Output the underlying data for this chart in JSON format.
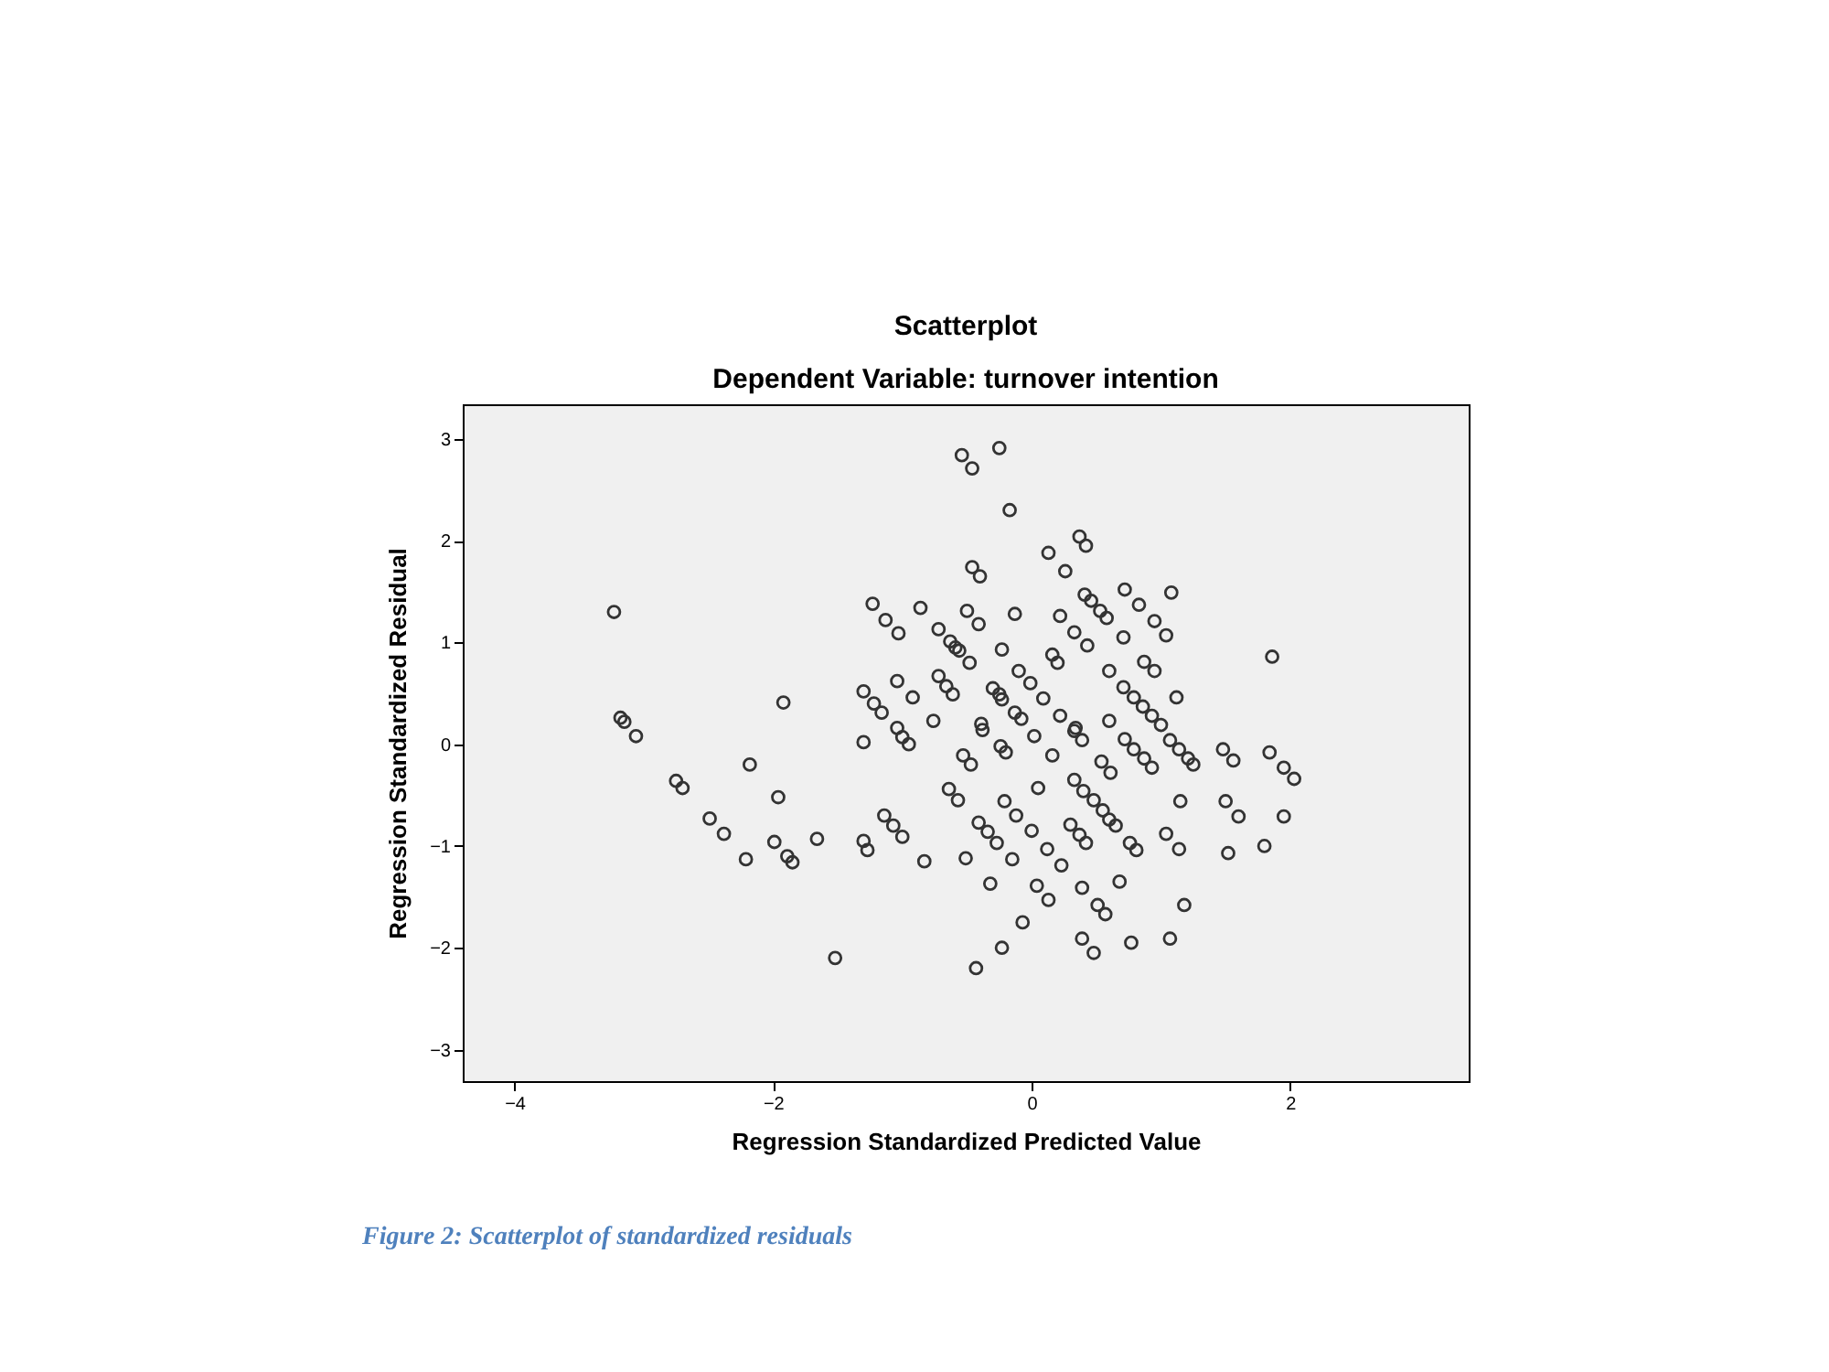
{
  "chart_data": {
    "type": "scatter",
    "title": "Scatterplot",
    "subtitle": "Dependent Variable: turnover intention",
    "xlabel": "Regression Standardized Predicted Value",
    "ylabel": "Regression Standardized Residual",
    "annotations": [
      "Figure 2: Scatterplot of standardized residuals"
    ],
    "x": [
      -3.23,
      -3.18,
      -3.15,
      -3.06,
      -1.92,
      -2.75,
      -2.7,
      -2.18,
      -1.96,
      -2.49,
      -2.38,
      -2.21,
      -1.99,
      -1.89,
      -1.85,
      -1.66,
      -1.52,
      -0.54,
      -0.46,
      -0.25,
      -0.17,
      -0.46,
      -0.4,
      -1.23,
      -1.13,
      -1.03,
      -0.86,
      -0.72,
      -0.63,
      -0.59,
      -0.56,
      -0.48,
      -0.5,
      -0.41,
      -0.13,
      -0.23,
      -1.3,
      -1.22,
      -1.16,
      -1.04,
      -0.92,
      -0.72,
      -0.66,
      -0.61,
      -0.3,
      -0.25,
      -0.23,
      -0.76,
      -1.04,
      -0.39,
      -0.1,
      -0.13,
      -0.08,
      -1.3,
      -1.0,
      -0.95,
      -0.38,
      -0.24,
      -0.2,
      -0.53,
      -0.47,
      -0.64,
      -0.57,
      -0.21,
      -0.12,
      -1.14,
      -1.07,
      -1.0,
      -1.3,
      -1.27,
      -0.41,
      -0.34,
      -0.27,
      -0.83,
      -0.51,
      -0.15,
      -0.32,
      -0.07,
      -0.23,
      -0.43,
      0.37,
      0.42,
      0.13,
      0.26,
      0.41,
      0.46,
      0.53,
      0.58,
      0.71,
      0.72,
      0.83,
      0.95,
      1.04,
      1.08,
      0.22,
      0.33,
      0.43,
      0.16,
      0.2,
      0.6,
      0.87,
      0.95,
      0.71,
      0.79,
      0.86,
      0.93,
      1.0,
      1.12,
      -0.01,
      0.09,
      0.22,
      0.34,
      0.6,
      0.02,
      0.16,
      0.33,
      0.39,
      0.72,
      0.79,
      0.87,
      0.93,
      1.07,
      1.14,
      1.21,
      0.05,
      0.33,
      0.4,
      0.48,
      0.55,
      0.6,
      0.65,
      0.3,
      0.37,
      0.42,
      1.15,
      0.0,
      0.12,
      0.23,
      0.76,
      0.81,
      1.04,
      1.14,
      0.68,
      0.04,
      0.13,
      0.39,
      0.51,
      0.57,
      0.39,
      0.48,
      0.77,
      1.07,
      1.18,
      1.86,
      1.48,
      1.56,
      1.25,
      1.84,
      1.95,
      2.03,
      1.5,
      1.6,
      1.95,
      1.52,
      1.8,
      0.54,
      0.61
    ],
    "values": [
      1.3,
      0.26,
      0.22,
      0.08,
      0.41,
      -0.36,
      -0.43,
      -0.2,
      -0.52,
      -0.73,
      -0.88,
      -1.13,
      -0.96,
      -1.1,
      -1.16,
      -0.93,
      -2.1,
      2.84,
      2.71,
      2.91,
      2.3,
      1.74,
      1.65,
      1.38,
      1.22,
      1.09,
      1.34,
      1.13,
      1.01,
      0.95,
      0.92,
      0.8,
      1.31,
      1.18,
      1.28,
      0.93,
      0.52,
      0.4,
      0.31,
      0.62,
      0.46,
      0.67,
      0.57,
      0.49,
      0.55,
      0.49,
      0.44,
      0.23,
      0.16,
      0.2,
      0.72,
      0.31,
      0.25,
      0.02,
      0.07,
      0.0,
      0.14,
      -0.02,
      -0.08,
      -0.11,
      -0.2,
      -0.44,
      -0.55,
      -0.56,
      -0.7,
      -0.7,
      -0.8,
      -0.91,
      -0.95,
      -1.04,
      -0.77,
      -0.86,
      -0.97,
      -1.15,
      -1.12,
      -1.13,
      -1.37,
      -1.75,
      -2.0,
      -2.2,
      2.04,
      1.95,
      1.88,
      1.7,
      1.47,
      1.41,
      1.31,
      1.24,
      1.05,
      1.52,
      1.37,
      1.21,
      1.07,
      1.49,
      1.26,
      1.1,
      0.97,
      0.88,
      0.8,
      0.72,
      0.81,
      0.72,
      0.56,
      0.46,
      0.37,
      0.28,
      0.19,
      0.46,
      0.6,
      0.45,
      0.28,
      0.16,
      0.23,
      0.08,
      -0.11,
      0.13,
      0.04,
      0.05,
      -0.05,
      -0.14,
      -0.23,
      0.04,
      -0.05,
      -0.14,
      -0.43,
      -0.35,
      -0.46,
      -0.55,
      -0.65,
      -0.74,
      -0.8,
      -0.79,
      -0.89,
      -0.97,
      -0.56,
      -0.85,
      -1.03,
      -1.19,
      -0.97,
      -1.04,
      -0.88,
      -1.03,
      -1.35,
      -1.39,
      -1.53,
      -1.41,
      -1.58,
      -1.67,
      -1.91,
      -2.05,
      -1.95,
      -1.91,
      -1.58,
      0.86,
      -0.05,
      -0.16,
      -0.2,
      -0.08,
      -0.23,
      -0.34,
      -0.56,
      -0.71,
      -0.71,
      -1.07,
      -1.0,
      -0.17,
      -0.28
    ],
    "color": "#333333",
    "marker": "circle",
    "xlim": [
      -4.4,
      3.38
    ],
    "ylim": [
      -3.31,
      3.34
    ],
    "xticks": [
      -4,
      -2,
      0,
      2
    ],
    "yticks": [
      -3,
      -2,
      -1,
      0,
      1,
      2,
      3
    ],
    "grid": false
  }
}
